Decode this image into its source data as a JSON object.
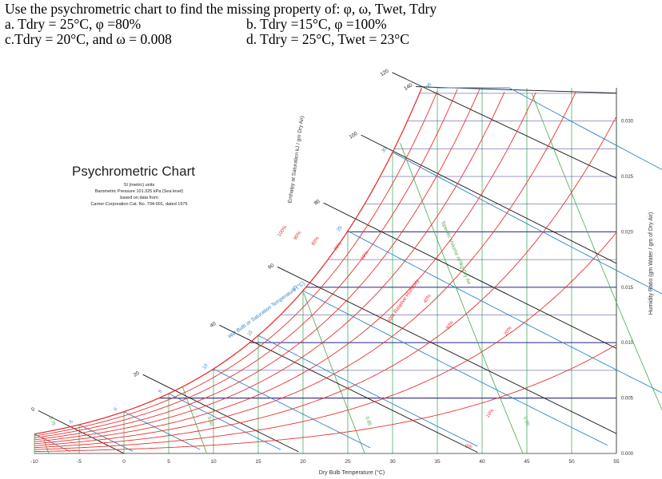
{
  "question": {
    "line1": "Use the psychrometric chart to find the missing property of: φ, ω, Twet, Tdry",
    "a": "a. Tdry = 25°C, φ =80%",
    "b": "b. Tdry =15°C, φ =100%",
    "c": "c.Tdry = 20°C, and ω = 0.008",
    "d": "d. Tdry = 25°C, Twet = 23°C"
  },
  "chart_data": {
    "type": "psychrometric",
    "title": "Psychrometric Chart",
    "subtitle_lines": [
      "SI (metric) units",
      "Barometric Pressure 101.325 kPa (Sea level)",
      "based on data from",
      "Carrier Corporation Cat. No. 794-001, dated 1975"
    ],
    "xlabel": "Dry Bulb Temperature (°C)",
    "ylabel": "Humidity Ratio (gm Water / gm of Dry Air)",
    "enthalpy_label": "Enthalpy at Saturation kJ / gm Dry Air)",
    "wetbulb_label": "Wet Bulb or Saturation Temperature (°C)",
    "volume_label": "Specific Volume m³/kg Dry Air",
    "rh_label": "50% Relative Humidity",
    "xlim": [
      -10,
      55
    ],
    "ylim": [
      0,
      0.033
    ],
    "x_ticks": [
      "-10",
      "-5",
      "0",
      "5",
      "10",
      "15",
      "20",
      "25",
      "30",
      "35",
      "40",
      "45",
      "50",
      "55"
    ],
    "y_ticks": [
      "0.000",
      "0.005",
      "0.010",
      "0.015",
      "0.020",
      "0.025",
      "0.030"
    ],
    "rh_curves": [
      10,
      20,
      30,
      40,
      50,
      60,
      70,
      80,
      90,
      100
    ],
    "rh_labels": [
      "10%",
      "20%",
      "30%",
      "40%",
      "60%",
      "70%",
      "80%",
      "90%",
      "100%",
      "0%"
    ],
    "wetbulb_lines": [
      -10,
      -5,
      0,
      5,
      10,
      15,
      20,
      25,
      30,
      35
    ],
    "wetbulb_labels": [
      "-5",
      "0",
      "5",
      "10",
      "15",
      "20",
      "25",
      "30",
      "35"
    ],
    "enthalpy_lines": [
      0,
      20,
      40,
      60,
      80,
      100,
      120,
      140
    ],
    "enthalpy_labels": [
      "0",
      "20",
      "40",
      "60",
      "80",
      "100",
      "120",
      "140"
    ],
    "volume_lines": [
      0.75,
      0.8,
      0.85,
      0.9,
      0.95
    ],
    "volume_labels": [
      "0.75",
      "0.80",
      "0.85",
      "0.90",
      "0.95"
    ],
    "colors": {
      "rh": "#e8322f",
      "wetbulb": "#2f86c6",
      "saturation": "#1f4fa8",
      "volume": "#49a84a",
      "enthalpy": "#111111",
      "grid_h": "#3d3b8e",
      "grid_v": "#2fa84a"
    }
  }
}
